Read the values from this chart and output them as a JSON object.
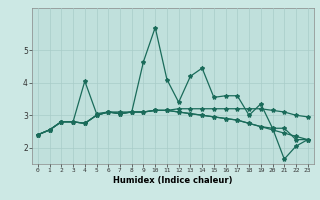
{
  "xlabel": "Humidex (Indice chaleur)",
  "x": [
    0,
    1,
    2,
    3,
    4,
    5,
    6,
    7,
    8,
    9,
    10,
    11,
    12,
    13,
    14,
    15,
    16,
    17,
    18,
    19,
    20,
    21,
    22,
    23
  ],
  "line1": [
    2.4,
    2.55,
    2.8,
    2.8,
    2.75,
    3.0,
    3.1,
    3.05,
    3.1,
    3.1,
    3.15,
    3.15,
    3.2,
    3.2,
    3.2,
    3.2,
    3.2,
    3.2,
    3.2,
    3.2,
    3.15,
    3.1,
    3.0,
    2.95
  ],
  "line2": [
    2.4,
    2.55,
    2.8,
    2.8,
    2.75,
    3.0,
    3.1,
    3.05,
    3.1,
    3.1,
    3.15,
    3.15,
    3.1,
    3.05,
    3.0,
    2.95,
    2.9,
    2.85,
    2.75,
    2.65,
    2.55,
    2.45,
    2.35,
    2.25
  ],
  "line3": [
    2.4,
    2.55,
    2.8,
    2.8,
    2.75,
    3.0,
    3.1,
    3.05,
    3.1,
    3.1,
    3.15,
    3.15,
    3.1,
    3.05,
    3.0,
    2.95,
    2.9,
    2.85,
    2.75,
    2.65,
    2.6,
    2.6,
    2.25,
    2.25
  ],
  "line4": [
    2.4,
    2.55,
    2.8,
    2.8,
    4.05,
    3.05,
    3.1,
    3.1,
    3.1,
    4.65,
    5.7,
    4.1,
    3.4,
    4.2,
    4.45,
    3.55,
    3.6,
    3.6,
    3.0,
    3.35,
    2.6,
    1.65,
    2.05,
    2.25
  ],
  "line_color": "#1a6b5a",
  "bg_color": "#cce8e4",
  "plot_bg": "#c0e0dc",
  "grid_color": "#a8ccc8",
  "ylim": [
    1.5,
    6.3
  ],
  "xlim": [
    -0.5,
    23.5
  ],
  "yticks": [
    2,
    3,
    4,
    5
  ],
  "xticks": [
    0,
    1,
    2,
    3,
    4,
    5,
    6,
    7,
    8,
    9,
    10,
    11,
    12,
    13,
    14,
    15,
    16,
    17,
    18,
    19,
    20,
    21,
    22,
    23
  ],
  "marker": "*",
  "marker_size": 3,
  "linewidth": 0.9
}
